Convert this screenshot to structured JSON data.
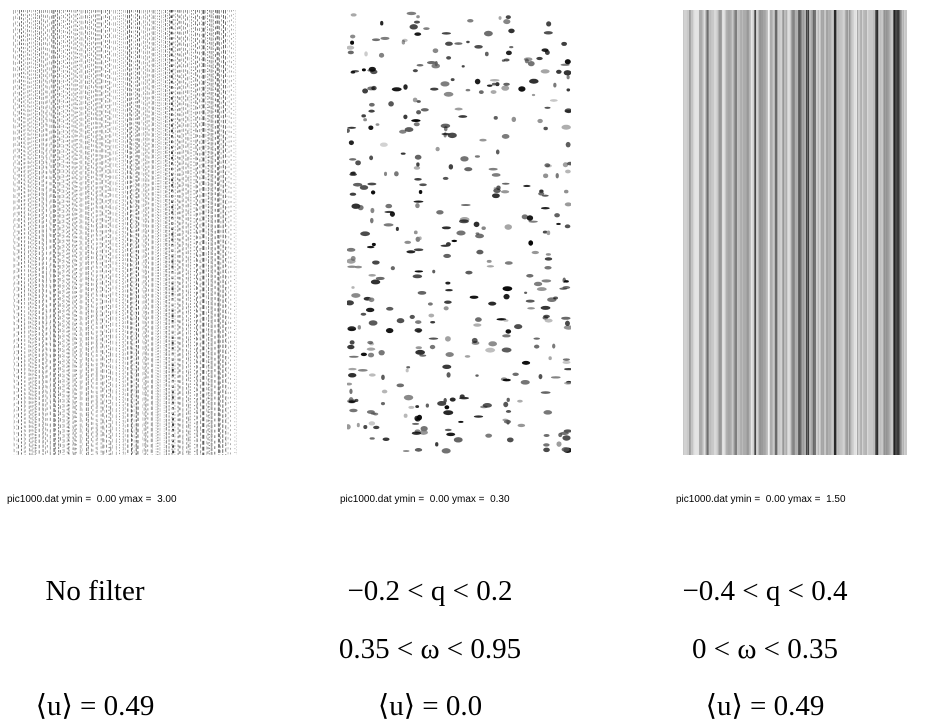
{
  "panels": [
    {
      "caption": "pic1000.dat ymin =  0.00 ymax =  3.00",
      "lines": [
        "No filter"
      ],
      "mean": "⟨u⟩ = 0.49"
    },
    {
      "caption": "pic1000.dat ymin =  0.00 ymax =  0.30",
      "lines": [
        "−0.2 < q < 0.2",
        "0.35 < ω < 0.95"
      ],
      "mean": "⟨u⟩ = 0.0"
    },
    {
      "caption": "pic1000.dat ymin =  0.00 ymax =  1.50",
      "lines": [
        "−0.4 < q < 0.4",
        "0 < ω < 0.35"
      ],
      "mean": "⟨u⟩ = 0.49"
    }
  ]
}
